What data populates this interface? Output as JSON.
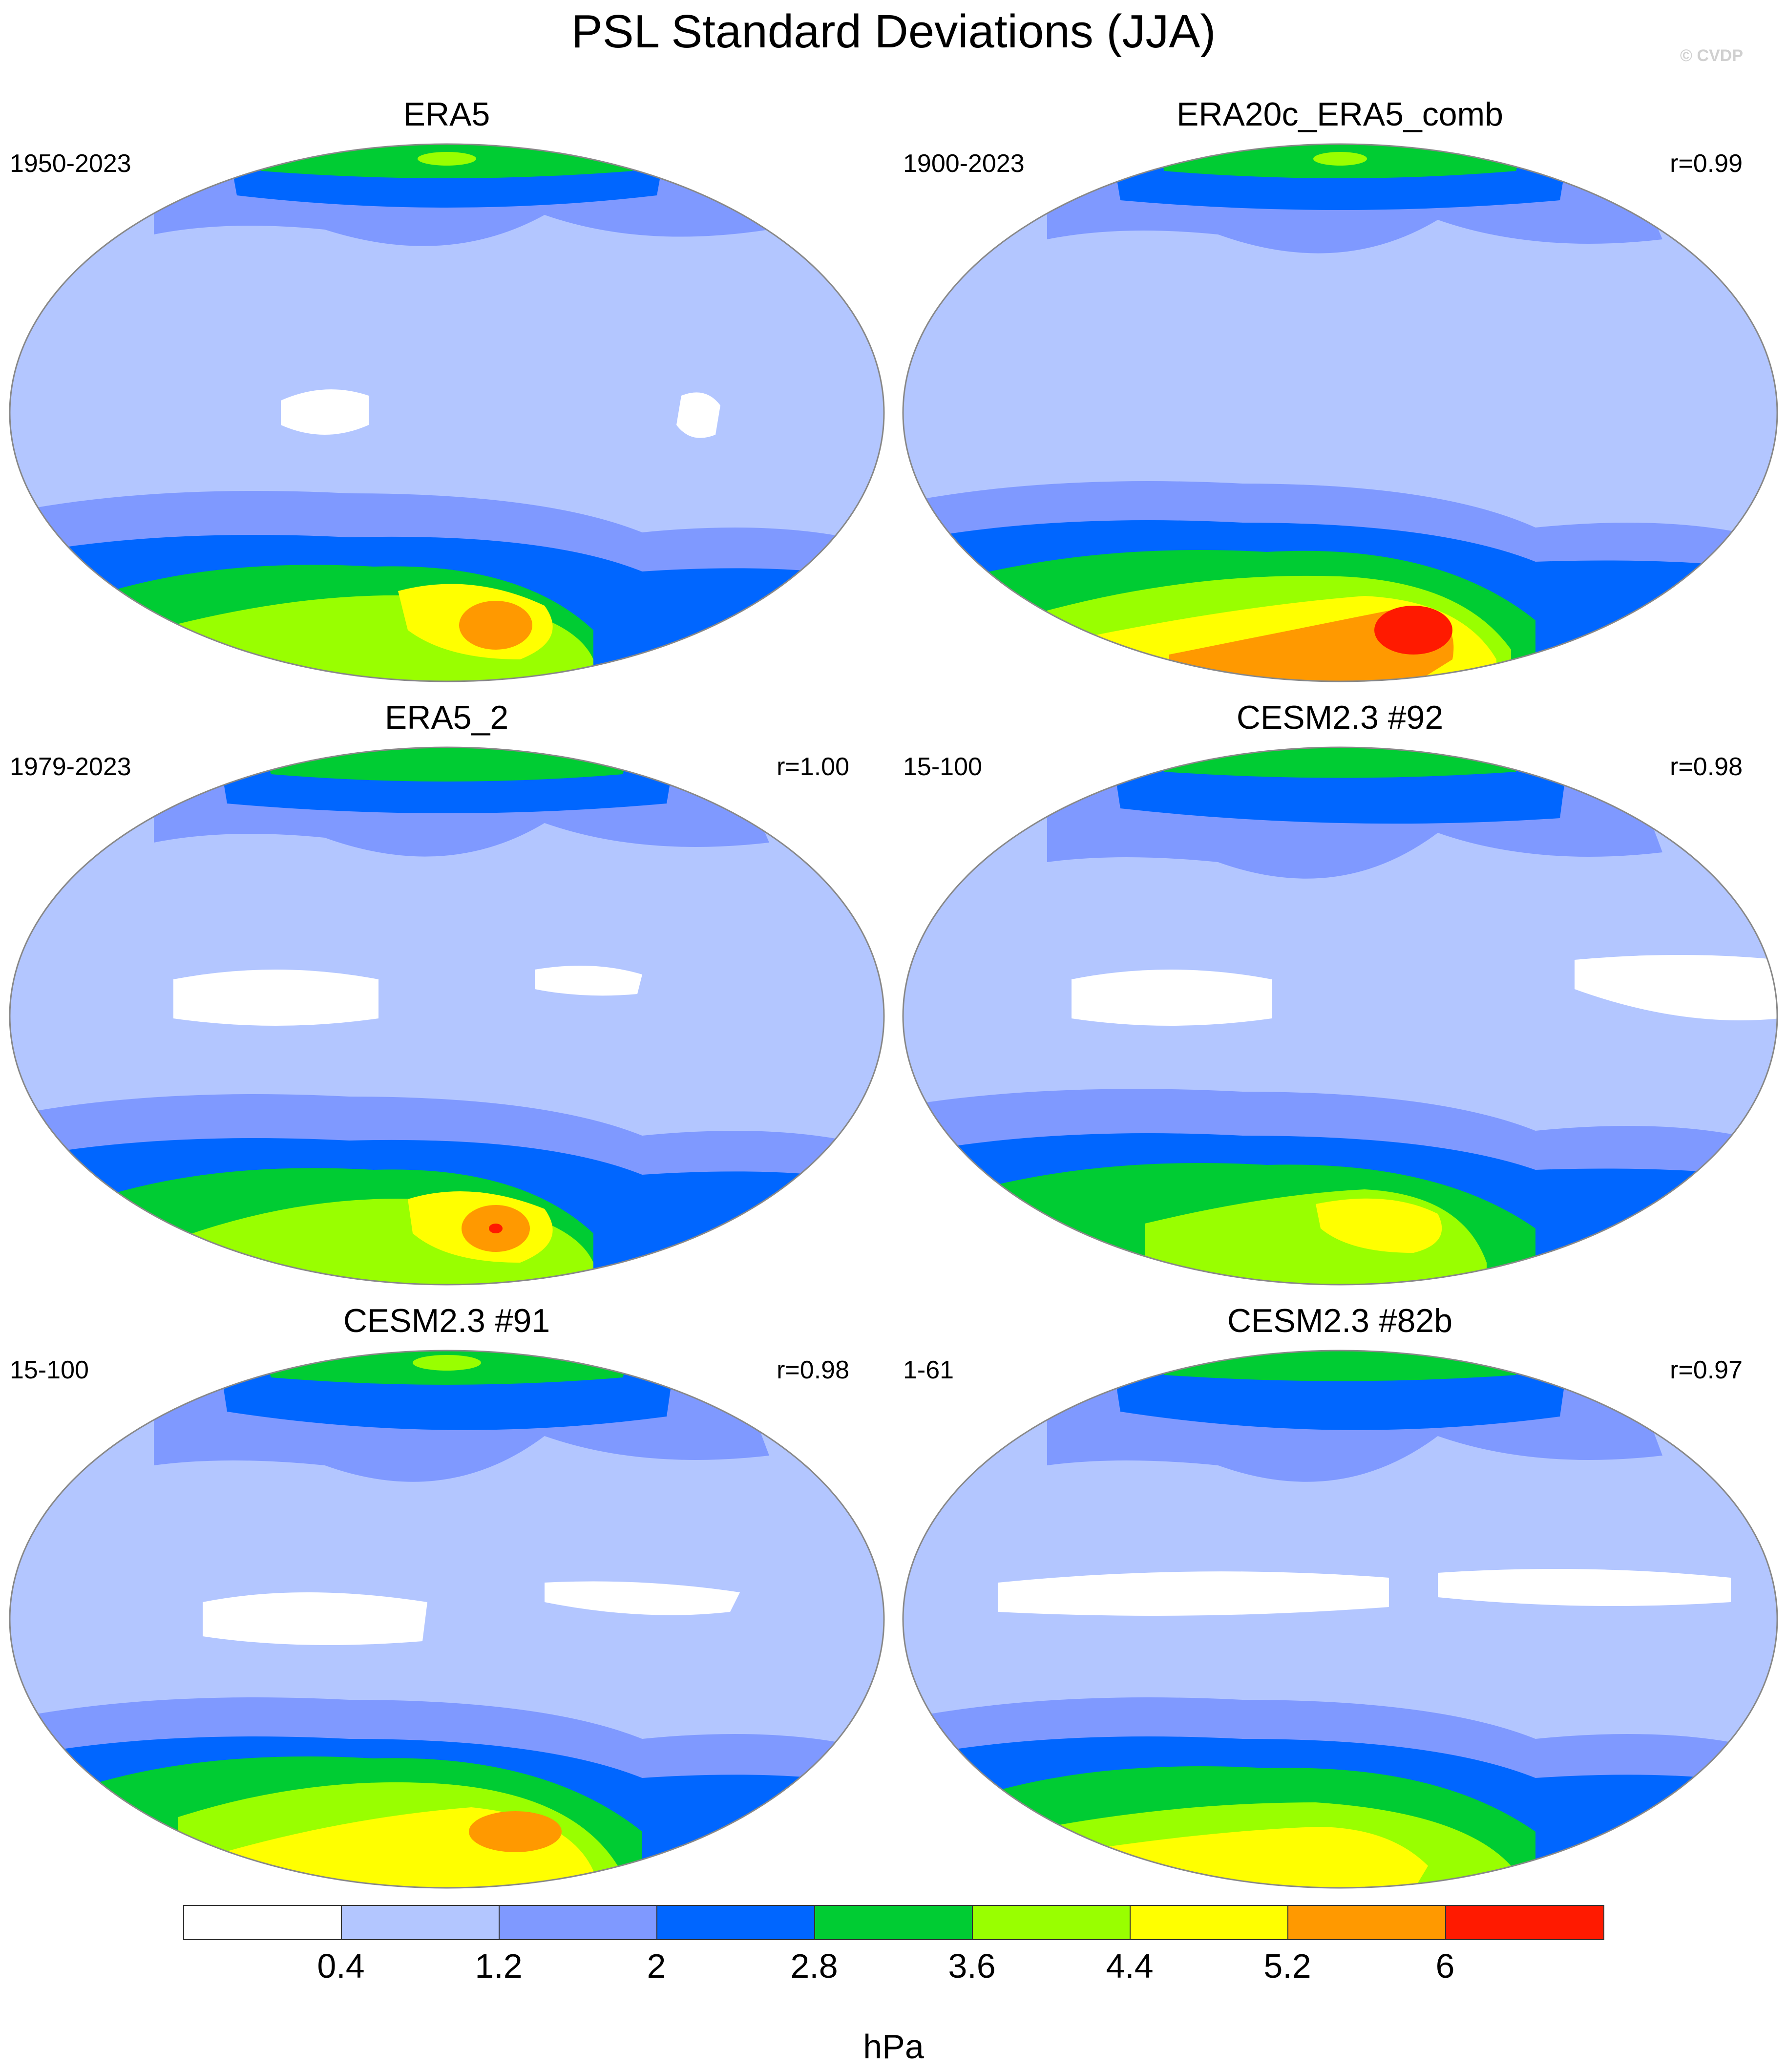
{
  "title": "PSL Standard Deviations (JJA)",
  "credit": "© CVDP",
  "colorbar": {
    "levels": [
      "0.4",
      "1.2",
      "2",
      "2.8",
      "3.6",
      "4.4",
      "5.2",
      "6"
    ],
    "colors": [
      "#ffffff",
      "#b3c6ff",
      "#7f99ff",
      "#0066ff",
      "#00cc33",
      "#99ff00",
      "#ffff00",
      "#ff9900",
      "#ff1a00"
    ],
    "units": "hPa"
  },
  "panels": [
    {
      "title": "ERA5",
      "period": "1950-2023",
      "corr": ""
    },
    {
      "title": "ERA20c_ERA5_comb",
      "period": "1900-2023",
      "corr": "r=0.99"
    },
    {
      "title": "ERA5_2",
      "period": "1979-2023",
      "corr": "r=1.00"
    },
    {
      "title": "CESM2.3 #92",
      "period": "15-100",
      "corr": "r=0.98"
    },
    {
      "title": "CESM2.3 #91",
      "period": "15-100",
      "corr": "r=0.98"
    },
    {
      "title": "CESM2.3 #82b",
      "period": "1-61",
      "corr": "r=0.97"
    }
  ]
}
